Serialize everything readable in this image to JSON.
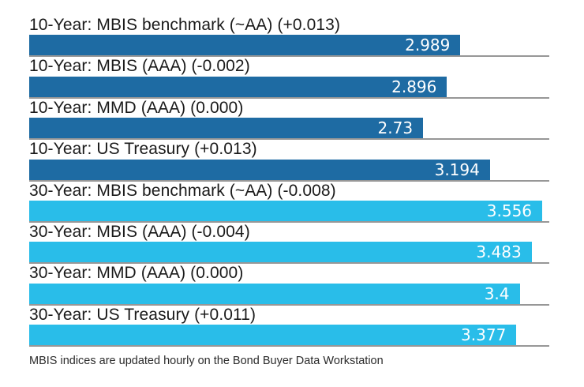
{
  "chart_data": {
    "type": "bar",
    "orientation": "horizontal",
    "title": "",
    "xlabel": "",
    "ylabel": "",
    "xlim": [
      0,
      3.605
    ],
    "grid": "baseline-per-row",
    "legend_position": "none",
    "bars": [
      {
        "label": "10-Year: MBIS benchmark (~AA) (+0.013)",
        "value": 2.989,
        "display": "2.989",
        "change": "+0.013",
        "group": "10-year"
      },
      {
        "label": "10-Year: MBIS (AAA) (-0.002)",
        "value": 2.896,
        "display": "2.896",
        "change": "-0.002",
        "group": "10-year"
      },
      {
        "label": "10-Year: MMD (AAA) (0.000)",
        "value": 2.73,
        "display": "2.73",
        "change": "0.000",
        "group": "10-year"
      },
      {
        "label": "10-Year: US Treasury (+0.013)",
        "value": 3.194,
        "display": "3.194",
        "change": "+0.013",
        "group": "10-year"
      },
      {
        "label": "30-Year: MBIS benchmark (~AA) (-0.008)",
        "value": 3.556,
        "display": "3.556",
        "change": "-0.008",
        "group": "30-year"
      },
      {
        "label": "30-Year: MBIS (AAA) (-0.004)",
        "value": 3.483,
        "display": "3.483",
        "change": "-0.004",
        "group": "30-year"
      },
      {
        "label": "30-Year: MMD (AAA) (0.000)",
        "value": 3.4,
        "display": "3.4",
        "change": "0.000",
        "group": "30-year"
      },
      {
        "label": "30-Year: US Treasury (+0.011)",
        "value": 3.377,
        "display": "3.377",
        "change": "+0.011",
        "group": "30-year"
      }
    ]
  },
  "colors": {
    "ten_year_bar": "#1E6BA3",
    "thirty_year_bar": "#29BDE9",
    "baseline": "#979797",
    "value_text": "#FFFFFF",
    "label_text": "#1A1A1A"
  },
  "footer": {
    "note": "MBIS indices are updated hourly on the Bond Buyer Data Workstation"
  }
}
